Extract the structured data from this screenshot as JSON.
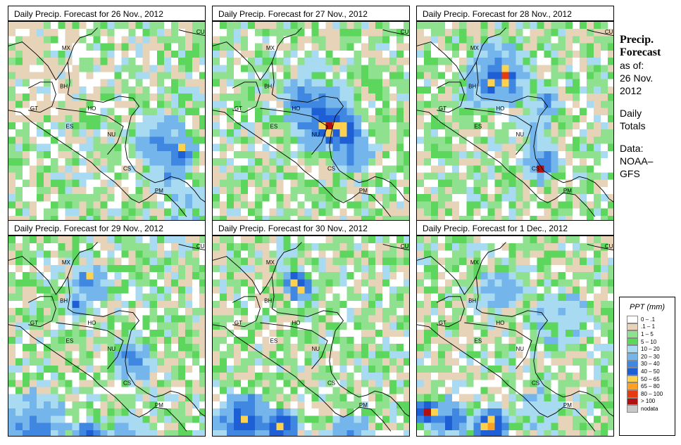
{
  "panels": [
    {
      "title": "Daily Precip. Forecast for  26 Nov., 2012"
    },
    {
      "title": "Daily Precip. Forecast for  27 Nov., 2012"
    },
    {
      "title": "Daily Precip. Forecast for  28 Nov., 2012"
    },
    {
      "title": "Daily Precip. Forecast for  29 Nov., 2012"
    },
    {
      "title": "Daily Precip. Forecast for  30 Nov., 2012"
    },
    {
      "title": "Daily Precip. Forecast for  1 Dec., 2012"
    }
  ],
  "country_labels": [
    "MX",
    "BH",
    "GT",
    "HO",
    "ES",
    "NU",
    "CS",
    "PM",
    "CU"
  ],
  "sidebar": {
    "title_line1": "Precip.",
    "title_line2": "Forecast",
    "asof_line1": "as of:",
    "asof_line2": "26 Nov.",
    "asof_line3": "2012",
    "totals_line1": "Daily",
    "totals_line2": "Totals",
    "data_line1": "Data:",
    "data_line2": "NOAA–",
    "data_line3": "GFS"
  },
  "legend": {
    "title": "PPT (mm)",
    "items": [
      {
        "label": "0 – .1",
        "color": "#ffffff"
      },
      {
        "label": ".1 – 1",
        "color": "#e6d3b8"
      },
      {
        "label": "1 – 5",
        "color": "#8fe08f"
      },
      {
        "label": "5 – 10",
        "color": "#5cd65c"
      },
      {
        "label": "10 – 20",
        "color": "#a8daf2"
      },
      {
        "label": "20 – 30",
        "color": "#74b6ec"
      },
      {
        "label": "30 – 40",
        "color": "#3f87e0"
      },
      {
        "label": "40 – 50",
        "color": "#1f5fd6"
      },
      {
        "label": "50 – 65",
        "color": "#ffd24d"
      },
      {
        "label": "65 – 80",
        "color": "#ffa020"
      },
      {
        "label": "80 – 100",
        "color": "#e63a10"
      },
      {
        "label": "> 100",
        "color": "#b01010"
      },
      {
        "label": "nodata",
        "color": "#c8c8c8"
      }
    ]
  }
}
